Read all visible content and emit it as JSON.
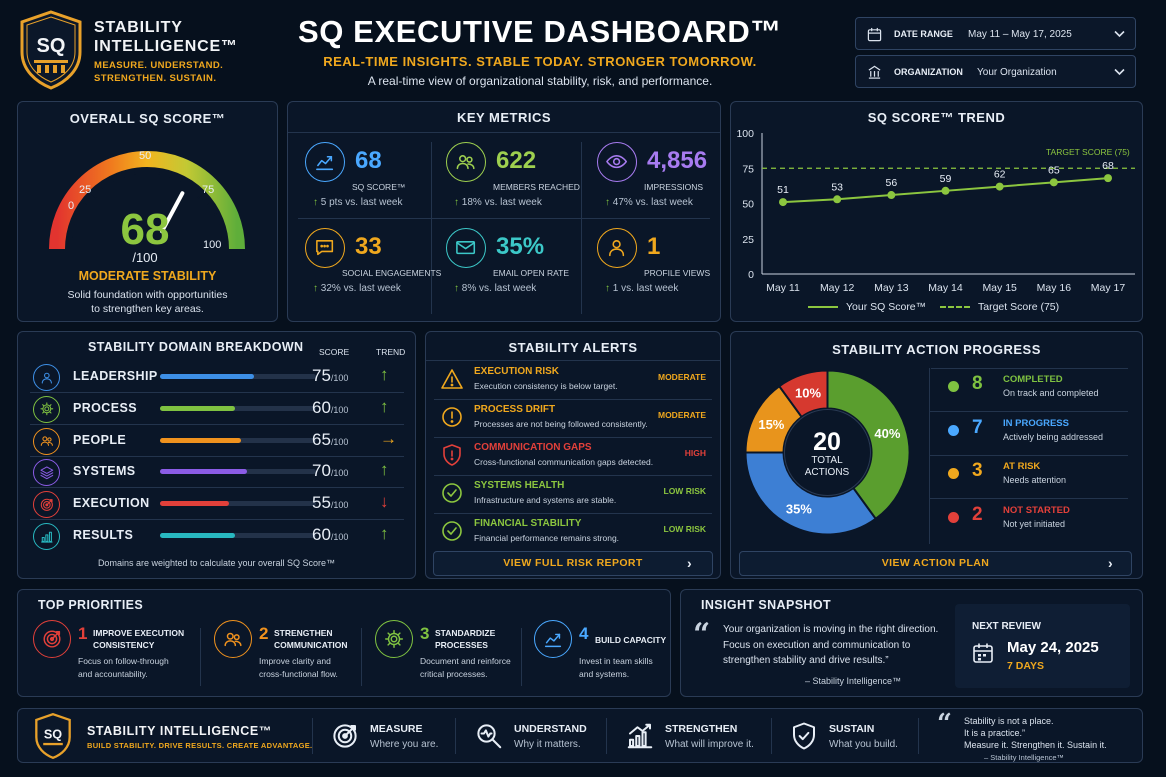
{
  "brand": {
    "logo_text": "SQ",
    "name_line1": "STABILITY",
    "name_line2": "INTELLIGENCE™",
    "tagline": "MEASURE. UNDERSTAND.",
    "tagline2": "STRENGTHEN. SUSTAIN."
  },
  "header": {
    "title": "SQ EXECUTIVE DASHBOARD™",
    "subtitle": "REAL-TIME INSIGHTS. STABLE TODAY. STRONGER TOMORROW.",
    "description": "A real-time view of organizational stability, risk, and performance."
  },
  "filters": {
    "date_label": "DATE RANGE",
    "date_value": "May 11 – May 17, 2025",
    "org_label": "ORGANIZATION",
    "org_value": "Your Organization"
  },
  "score": {
    "title": "OVERALL SQ SCORE™",
    "value": "68",
    "out_of": "/100",
    "level": 68,
    "ticks": [
      "0",
      "25",
      "50",
      "75",
      "100"
    ],
    "status": "MODERATE STABILITY",
    "desc1": "Solid foundation with opportunities",
    "desc2": "to strengthen key areas."
  },
  "metrics": {
    "title": "KEY METRICS",
    "items": [
      {
        "value": "68",
        "label": "SQ SCORE™",
        "change": "5 pts vs. last week",
        "color": "#4aa8ff",
        "icon": "trend-chart-icon"
      },
      {
        "value": "622",
        "label": "MEMBERS REACHED",
        "change": "18% vs. last week",
        "color": "#9ed04f",
        "icon": "people-icon"
      },
      {
        "value": "4,856",
        "label": "IMPRESSIONS",
        "change": "47% vs. last week",
        "color": "#a77bf0",
        "icon": "eye-icon"
      },
      {
        "value": "33",
        "label": "SOCIAL ENGAGEMENTS",
        "change": "32% vs. last week",
        "color": "#f0a81e",
        "icon": "chat-icon"
      },
      {
        "value": "35%",
        "label": "EMAIL OPEN RATE",
        "change": "8% vs. last week",
        "color": "#3cc8c8",
        "icon": "mail-icon"
      },
      {
        "value": "1",
        "label": "PROFILE VIEWS",
        "change": "1 vs. last week",
        "color": "#f0a81e",
        "icon": "profile-icon"
      }
    ]
  },
  "trend": {
    "title": "SQ SCORE™ TREND",
    "target_label": "TARGET SCORE (75)",
    "legend_score": "Your SQ Score™",
    "legend_target": "Target Score (75)"
  },
  "chart_data": {
    "type": "line",
    "title": "SQ SCORE™ TREND",
    "categories": [
      "May 11",
      "May 12",
      "May 13",
      "May 14",
      "May 15",
      "May 16",
      "May 17"
    ],
    "yticks": [
      "100",
      "75",
      "50",
      "25",
      "0"
    ],
    "ylim": [
      0,
      100
    ],
    "series": [
      {
        "name": "Your SQ Score™",
        "values": [
          51,
          53,
          56,
          59,
          62,
          65,
          68
        ],
        "labels": [
          "51",
          "53",
          "56",
          "59",
          "62",
          "65",
          "68"
        ],
        "color": "#8cc63f"
      },
      {
        "name": "Target Score (75)",
        "values": [
          75,
          75,
          75,
          75,
          75,
          75,
          75
        ],
        "color": "#8cc63f",
        "dashed": true
      }
    ],
    "grid": false,
    "legend": "bottom"
  },
  "domains": {
    "title": "STABILITY DOMAIN BREAKDOWN",
    "col_score": "SCORE",
    "col_trend": "TREND",
    "suffix": "/100",
    "items": [
      {
        "label": "LEADERSHIP",
        "score": "75",
        "value": 75,
        "color": "#3d8fe6",
        "trend": "↑",
        "trend_color": "#7fc241",
        "icon": "person-icon"
      },
      {
        "label": "PROCESS",
        "score": "60",
        "value": 60,
        "color": "#7fc241",
        "trend": "↑",
        "trend_color": "#7fc241",
        "icon": "gear-icon"
      },
      {
        "label": "PEOPLE",
        "score": "65",
        "value": 65,
        "color": "#f0921e",
        "trend": "→",
        "trend_color": "#f0a81e",
        "icon": "people-icon"
      },
      {
        "label": "SYSTEMS",
        "score": "70",
        "value": 70,
        "color": "#8b5ce6",
        "trend": "↑",
        "trend_color": "#7fc241",
        "icon": "layers-icon"
      },
      {
        "label": "EXECUTION",
        "score": "55",
        "value": 55,
        "color": "#e2403a",
        "trend": "↓",
        "trend_color": "#e2403a",
        "icon": "target-icon"
      },
      {
        "label": "RESULTS",
        "score": "60",
        "value": 60,
        "color": "#28b8c0",
        "trend": "↑",
        "trend_color": "#7fc241",
        "icon": "bar-chart-icon"
      }
    ],
    "note": "Domains are weighted to calculate your overall SQ Score™"
  },
  "alerts": {
    "title": "STABILITY ALERTS",
    "items": [
      {
        "title": "EXECUTION RISK",
        "desc": "Execution consistency is below target.",
        "level": "MODERATE",
        "color": "#f0a81e",
        "icon": "warning-icon"
      },
      {
        "title": "PROCESS DRIFT",
        "desc": "Processes are not being followed consistently.",
        "level": "MODERATE",
        "color": "#f0a81e",
        "icon": "alert-circle-icon"
      },
      {
        "title": "COMMUNICATION GAPS",
        "desc": "Cross-functional communication gaps detected.",
        "level": "HIGH",
        "color": "#e2403a",
        "icon": "shield-alert-icon"
      },
      {
        "title": "SYSTEMS HEALTH",
        "desc": "Infrastructure and systems are stable.",
        "level": "LOW RISK",
        "color": "#8cc63f",
        "icon": "check-circle-icon"
      },
      {
        "title": "FINANCIAL STABILITY",
        "desc": "Financial performance remains strong.",
        "level": "LOW RISK",
        "color": "#8cc63f",
        "icon": "check-circle-icon"
      }
    ],
    "button": "VIEW FULL RISK REPORT"
  },
  "actions": {
    "title": "STABILITY ACTION PROGRESS",
    "total": "20",
    "total_label1": "TOTAL",
    "total_label2": "ACTIONS",
    "slices": [
      {
        "label": "40%",
        "value": 40,
        "color": "#5a9e2e"
      },
      {
        "label": "35%",
        "value": 35,
        "color": "#3d7fd4"
      },
      {
        "label": "15%",
        "value": 15,
        "color": "#e8941c"
      },
      {
        "label": "10%",
        "value": 10,
        "color": "#d6392f"
      }
    ],
    "items": [
      {
        "count": "8",
        "title": "COMPLETED",
        "desc": "On track and completed",
        "color": "#7fc241"
      },
      {
        "count": "7",
        "title": "IN PROGRESS",
        "desc": "Actively being addressed",
        "color": "#4aa8ff"
      },
      {
        "count": "3",
        "title": "AT RISK",
        "desc": "Needs attention",
        "color": "#f0a81e"
      },
      {
        "count": "2",
        "title": "NOT STARTED",
        "desc": "Not yet initiated",
        "color": "#e2403a"
      }
    ],
    "button": "VIEW ACTION PLAN"
  },
  "priorities": {
    "title": "TOP PRIORITIES",
    "items": [
      {
        "num": "1",
        "title1": "IMPROVE EXECUTION",
        "title2": "CONSISTENCY",
        "desc1": "Focus on follow-through",
        "desc2": "and accountability.",
        "color": "#e2403a",
        "icon": "target-icon"
      },
      {
        "num": "2",
        "title1": "STRENGTHEN",
        "title2": "COMMUNICATION",
        "desc1": "Improve clarity and",
        "desc2": "cross-functional flow.",
        "color": "#f0921e",
        "icon": "people-icon"
      },
      {
        "num": "3",
        "title1": "STANDARDIZE",
        "title2": "PROCESSES",
        "desc1": "Document and reinforce",
        "desc2": "critical processes.",
        "color": "#7fc241",
        "icon": "gear-icon"
      },
      {
        "num": "4",
        "title1": "BUILD CAPACITY",
        "title2": "",
        "desc1": "Invest in team skills",
        "desc2": "and systems.",
        "color": "#4aa8ff",
        "icon": "trend-chart-icon"
      }
    ]
  },
  "insight": {
    "title": "INSIGHT SNAPSHOT",
    "line1": "Your organization is moving in the right direction.",
    "line2": "Focus on execution and communication to",
    "line3": "strengthen stability and drive results.”",
    "author": "– Stability Intelligence™",
    "review_label": "NEXT REVIEW",
    "review_date": "May 24, 2025",
    "review_days": "7 DAYS"
  },
  "footer": {
    "brand": "STABILITY INTELLIGENCE™",
    "tagline": "BUILD STABILITY. DRIVE RESULTS. CREATE ADVANTAGE.",
    "items": [
      {
        "title": "MEASURE",
        "desc": "Where you are.",
        "icon": "target-icon"
      },
      {
        "title": "UNDERSTAND",
        "desc": "Why it matters.",
        "icon": "magnifier-icon"
      },
      {
        "title": "STRENGTHEN",
        "desc": "What will improve it.",
        "icon": "growth-icon"
      },
      {
        "title": "SUSTAIN",
        "desc": "What you build.",
        "icon": "shield-check-icon"
      }
    ],
    "quote1": "Stability is not a place.",
    "quote2": "It is a practice.”",
    "quote3": "Measure it. Strengthen it. Sustain it.",
    "quote_author": "– Stability Intelligence™"
  }
}
